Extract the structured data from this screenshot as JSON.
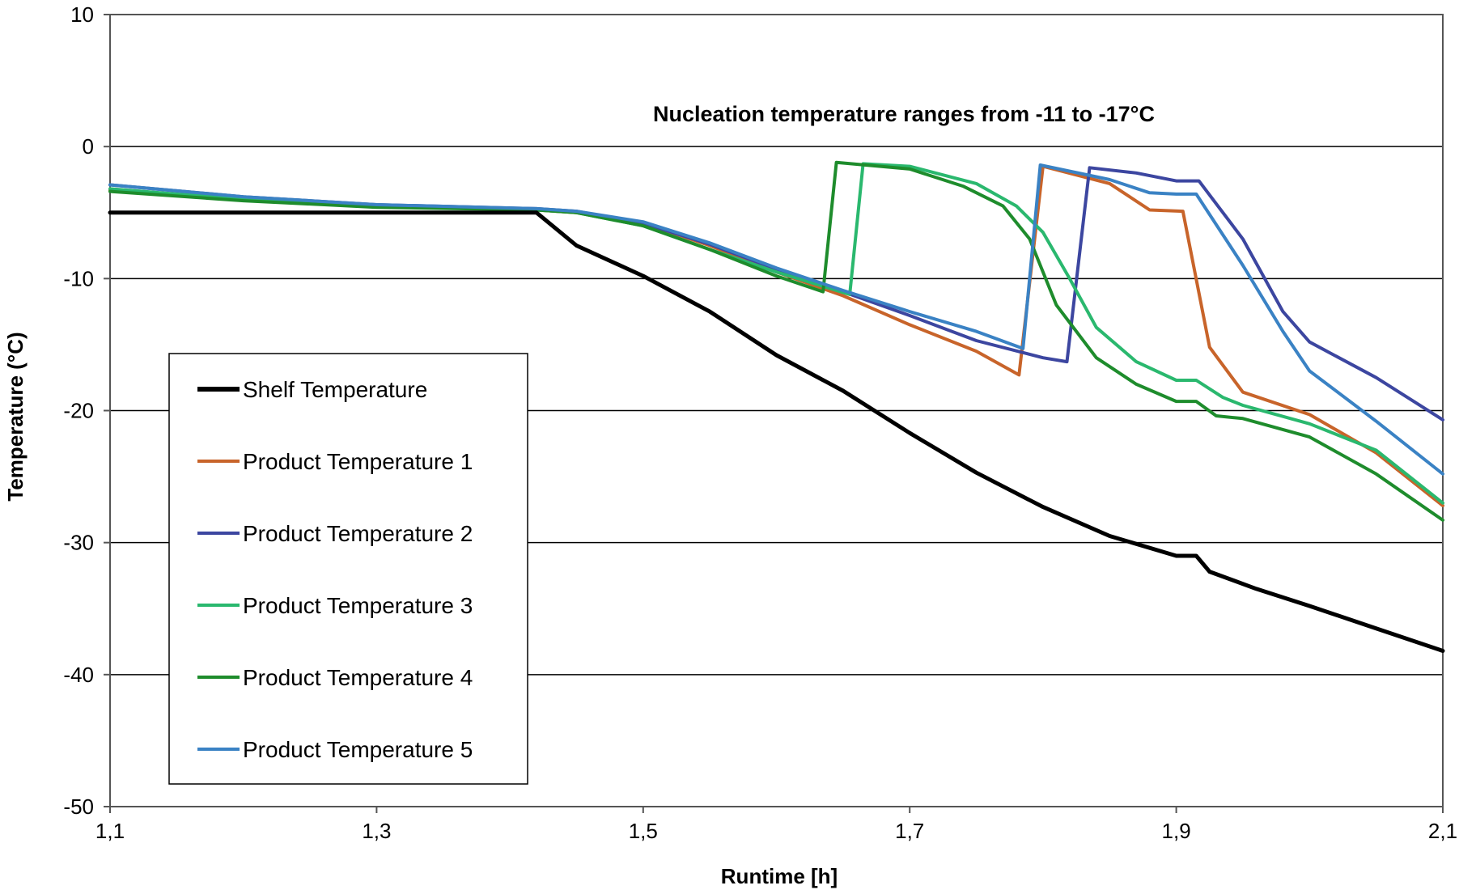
{
  "chart_data": {
    "type": "line",
    "title": "",
    "annotation": "Nucleation temperature ranges from -11 to -17°C",
    "xlabel": "Runtime [h]",
    "ylabel": "Temperature (°C)",
    "xlim": [
      1.1,
      2.1
    ],
    "ylim": [
      -50,
      10
    ],
    "x_ticks": [
      1.1,
      1.3,
      1.5,
      1.7,
      1.9,
      2.1
    ],
    "x_tick_labels": [
      "1,1",
      "1,3",
      "1,5",
      "1,7",
      "1,9",
      "2,1"
    ],
    "y_ticks": [
      10,
      0,
      -10,
      -20,
      -30,
      -40,
      -50
    ],
    "y_tick_labels": [
      "10",
      "0",
      "-10",
      "-20",
      "-30",
      "-40",
      "-50"
    ],
    "grid": "horizontal",
    "legend_position": "lower-left",
    "series": [
      {
        "name": "Shelf Temperature",
        "color": "#000000",
        "points": [
          [
            1.1,
            -5
          ],
          [
            1.2,
            -5
          ],
          [
            1.3,
            -5
          ],
          [
            1.42,
            -5
          ],
          [
            1.45,
            -7.5
          ],
          [
            1.5,
            -9.8
          ],
          [
            1.55,
            -12.5
          ],
          [
            1.6,
            -15.8
          ],
          [
            1.65,
            -18.5
          ],
          [
            1.7,
            -21.7
          ],
          [
            1.75,
            -24.7
          ],
          [
            1.8,
            -27.3
          ],
          [
            1.85,
            -29.5
          ],
          [
            1.9,
            -31.0
          ],
          [
            1.915,
            -31.0
          ],
          [
            1.925,
            -32.2
          ],
          [
            1.96,
            -33.5
          ],
          [
            2.0,
            -34.8
          ],
          [
            2.05,
            -36.5
          ],
          [
            2.1,
            -38.2
          ]
        ]
      },
      {
        "name": "Product Temperature 1",
        "color": "#c8642a",
        "points": [
          [
            1.1,
            -3.3
          ],
          [
            1.2,
            -4.0
          ],
          [
            1.3,
            -4.5
          ],
          [
            1.42,
            -4.8
          ],
          [
            1.45,
            -5.0
          ],
          [
            1.5,
            -5.8
          ],
          [
            1.55,
            -7.5
          ],
          [
            1.6,
            -9.5
          ],
          [
            1.65,
            -11.3
          ],
          [
            1.7,
            -13.5
          ],
          [
            1.75,
            -15.5
          ],
          [
            1.782,
            -17.3
          ],
          [
            1.8,
            -1.5
          ],
          [
            1.85,
            -2.8
          ],
          [
            1.88,
            -4.8
          ],
          [
            1.905,
            -4.9
          ],
          [
            1.925,
            -15.2
          ],
          [
            1.95,
            -18.6
          ],
          [
            2.0,
            -20.3
          ],
          [
            2.05,
            -23.2
          ],
          [
            2.1,
            -27.2
          ]
        ]
      },
      {
        "name": "Product Temperature 2",
        "color": "#3c46a0",
        "points": [
          [
            1.1,
            -2.9
          ],
          [
            1.2,
            -3.8
          ],
          [
            1.3,
            -4.4
          ],
          [
            1.42,
            -4.7
          ],
          [
            1.45,
            -4.9
          ],
          [
            1.5,
            -5.8
          ],
          [
            1.55,
            -7.4
          ],
          [
            1.6,
            -9.3
          ],
          [
            1.65,
            -11.0
          ],
          [
            1.7,
            -12.8
          ],
          [
            1.75,
            -14.7
          ],
          [
            1.8,
            -16.0
          ],
          [
            1.818,
            -16.3
          ],
          [
            1.835,
            -1.6
          ],
          [
            1.87,
            -2.0
          ],
          [
            1.9,
            -2.6
          ],
          [
            1.917,
            -2.6
          ],
          [
            1.95,
            -7.0
          ],
          [
            1.98,
            -12.5
          ],
          [
            2.0,
            -14.8
          ],
          [
            2.05,
            -17.5
          ],
          [
            2.1,
            -20.7
          ]
        ]
      },
      {
        "name": "Product Temperature 3",
        "color": "#2ab86e",
        "points": [
          [
            1.1,
            -3.2
          ],
          [
            1.2,
            -4.0
          ],
          [
            1.3,
            -4.5
          ],
          [
            1.42,
            -4.8
          ],
          [
            1.45,
            -5.0
          ],
          [
            1.5,
            -6.0
          ],
          [
            1.55,
            -7.8
          ],
          [
            1.6,
            -9.5
          ],
          [
            1.655,
            -11.2
          ],
          [
            1.665,
            -1.3
          ],
          [
            1.7,
            -1.5
          ],
          [
            1.75,
            -2.8
          ],
          [
            1.78,
            -4.5
          ],
          [
            1.8,
            -6.5
          ],
          [
            1.82,
            -10.0
          ],
          [
            1.84,
            -13.7
          ],
          [
            1.87,
            -16.3
          ],
          [
            1.9,
            -17.7
          ],
          [
            1.915,
            -17.7
          ],
          [
            1.935,
            -19.0
          ],
          [
            1.95,
            -19.6
          ],
          [
            2.0,
            -21.0
          ],
          [
            2.05,
            -23.0
          ],
          [
            2.1,
            -27.0
          ]
        ]
      },
      {
        "name": "Product Temperature 4",
        "color": "#1e8c2c",
        "points": [
          [
            1.1,
            -3.4
          ],
          [
            1.2,
            -4.1
          ],
          [
            1.3,
            -4.6
          ],
          [
            1.42,
            -4.8
          ],
          [
            1.45,
            -5.0
          ],
          [
            1.5,
            -6.0
          ],
          [
            1.55,
            -7.8
          ],
          [
            1.6,
            -9.8
          ],
          [
            1.635,
            -11.0
          ],
          [
            1.645,
            -1.2
          ],
          [
            1.7,
            -1.7
          ],
          [
            1.74,
            -3.0
          ],
          [
            1.77,
            -4.5
          ],
          [
            1.79,
            -7.0
          ],
          [
            1.81,
            -12.0
          ],
          [
            1.84,
            -16.0
          ],
          [
            1.87,
            -18.0
          ],
          [
            1.9,
            -19.3
          ],
          [
            1.915,
            -19.3
          ],
          [
            1.93,
            -20.4
          ],
          [
            1.95,
            -20.6
          ],
          [
            2.0,
            -22.0
          ],
          [
            2.05,
            -24.8
          ],
          [
            2.1,
            -28.3
          ]
        ]
      },
      {
        "name": "Product Temperature 5",
        "color": "#3a82c4",
        "points": [
          [
            1.1,
            -2.9
          ],
          [
            1.2,
            -3.8
          ],
          [
            1.3,
            -4.4
          ],
          [
            1.42,
            -4.7
          ],
          [
            1.45,
            -4.9
          ],
          [
            1.5,
            -5.7
          ],
          [
            1.55,
            -7.3
          ],
          [
            1.6,
            -9.2
          ],
          [
            1.65,
            -10.9
          ],
          [
            1.7,
            -12.5
          ],
          [
            1.75,
            -14.0
          ],
          [
            1.785,
            -15.3
          ],
          [
            1.798,
            -1.4
          ],
          [
            1.85,
            -2.5
          ],
          [
            1.88,
            -3.5
          ],
          [
            1.9,
            -3.6
          ],
          [
            1.915,
            -3.6
          ],
          [
            1.95,
            -9.0
          ],
          [
            1.98,
            -14.0
          ],
          [
            2.0,
            -17.0
          ],
          [
            2.05,
            -20.8
          ],
          [
            2.1,
            -24.8
          ]
        ]
      }
    ]
  }
}
